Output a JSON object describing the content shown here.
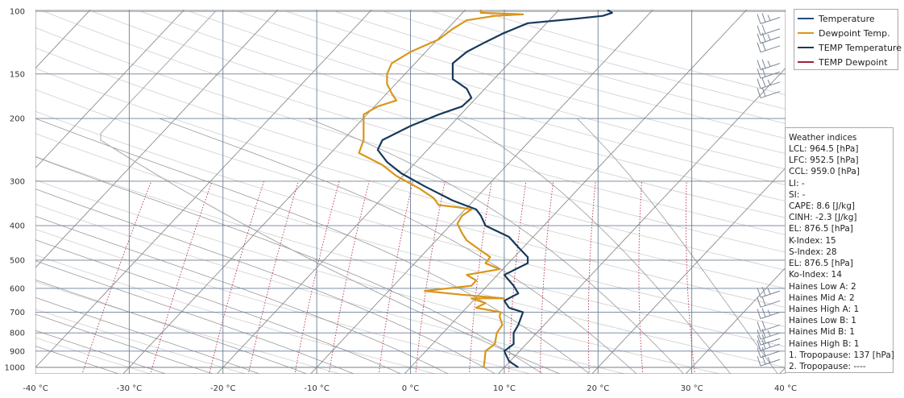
{
  "chart_data": {
    "type": "line",
    "title": "",
    "xlabel": "",
    "ylabel": "",
    "xlim": [
      -40,
      40
    ],
    "ylim": [
      1050,
      100
    ],
    "y_scale": "log",
    "grid": true,
    "legend_position": "top-right",
    "x_ticks": [
      "-40 °C",
      "-30 °C",
      "-20 °C",
      "-10 °C",
      "0 °C",
      "10 °C",
      "20 °C",
      "30 °C",
      "40 °C"
    ],
    "y_ticks": [
      "100",
      "150",
      "200",
      "300",
      "400",
      "500",
      "600",
      "700",
      "800",
      "900",
      "1000"
    ],
    "series": [
      {
        "name": "Temperature",
        "color": "#1f4e79",
        "points": []
      },
      {
        "name": "Dewpoint Temp.",
        "color": "#d9961a",
        "points": [
          [
            7.8,
            1000
          ],
          [
            7.9,
            960
          ],
          [
            8.0,
            900
          ],
          [
            9.0,
            860
          ],
          [
            9.2,
            800
          ],
          [
            9.8,
            760
          ],
          [
            9.5,
            720
          ],
          [
            9.6,
            700
          ],
          [
            7.0,
            680
          ],
          [
            8.0,
            660
          ],
          [
            6.5,
            640
          ],
          [
            10.0,
            640
          ],
          [
            5.5,
            625
          ],
          [
            1.5,
            610
          ],
          [
            6.5,
            590
          ],
          [
            7.0,
            570
          ],
          [
            6.0,
            550
          ],
          [
            9.5,
            530
          ],
          [
            8.0,
            510
          ],
          [
            8.5,
            490
          ],
          [
            7.0,
            460
          ],
          [
            6.0,
            440
          ],
          [
            5.5,
            420
          ],
          [
            5.0,
            395
          ],
          [
            5.5,
            375
          ],
          [
            6.5,
            360
          ],
          [
            5.0,
            355
          ],
          [
            3.0,
            350
          ],
          [
            2.5,
            335
          ],
          [
            1.0,
            315
          ],
          [
            -1.5,
            290
          ],
          [
            -3.0,
            270
          ],
          [
            -5.5,
            250
          ],
          [
            -5.0,
            230
          ],
          [
            -5.0,
            210
          ],
          [
            -5.0,
            195
          ],
          [
            -3.5,
            185
          ],
          [
            -1.5,
            178
          ],
          [
            -2.0,
            170
          ],
          [
            -2.5,
            160
          ],
          [
            -2.5,
            150
          ],
          [
            -2.0,
            140
          ],
          [
            0.0,
            130
          ],
          [
            3.0,
            120
          ],
          [
            4.5,
            112
          ],
          [
            6.0,
            106
          ],
          [
            9.0,
            103
          ],
          [
            12.0,
            102
          ],
          [
            7.5,
            101
          ],
          [
            7.5,
            99
          ]
        ]
      },
      {
        "name": "TEMP Temperature",
        "color": "#17395a",
        "points": [
          [
            11.5,
            1000
          ],
          [
            10.5,
            960
          ],
          [
            10.0,
            900
          ],
          [
            11.0,
            860
          ],
          [
            11.0,
            800
          ],
          [
            11.5,
            760
          ],
          [
            12.0,
            700
          ],
          [
            10.5,
            680
          ],
          [
            10.0,
            650
          ],
          [
            11.5,
            620
          ],
          [
            11.0,
            590
          ],
          [
            10.0,
            550
          ],
          [
            12.5,
            510
          ],
          [
            12.5,
            490
          ],
          [
            11.5,
            460
          ],
          [
            10.5,
            430
          ],
          [
            8.0,
            400
          ],
          [
            7.5,
            375
          ],
          [
            7.0,
            360
          ],
          [
            4.5,
            340
          ],
          [
            1.5,
            310
          ],
          [
            -1.0,
            285
          ],
          [
            -2.5,
            265
          ],
          [
            -3.5,
            245
          ],
          [
            -3.0,
            230
          ],
          [
            0.0,
            210
          ],
          [
            3.0,
            195
          ],
          [
            5.5,
            185
          ],
          [
            6.5,
            175
          ],
          [
            6.0,
            165
          ],
          [
            4.5,
            155
          ],
          [
            4.5,
            140
          ],
          [
            6.0,
            130
          ],
          [
            8.0,
            122
          ],
          [
            10.0,
            115
          ],
          [
            12.5,
            108
          ],
          [
            17.5,
            105
          ],
          [
            20.5,
            103
          ],
          [
            21.0,
            102
          ],
          [
            21.5,
            101
          ],
          [
            21.0,
            99
          ]
        ]
      },
      {
        "name": "TEMP Dewpoint",
        "color": "#a02037",
        "points": []
      }
    ],
    "indices": {
      "title": "Weather indices",
      "rows": [
        "LCL: 964.5 [hPa]",
        "LFC: 952.5 [hPa]",
        "CCL: 959.0 [hPa]",
        "LI: -",
        "SI: -",
        "CAPE: 8.6 [J/kg]",
        "CINH: -2.3 [J/kg]",
        "EL: 876.5 [hPa]",
        "K-Index: 15",
        "S-Index: 28",
        "EL: 876.5 [hPa]",
        "Ko-Index: 14",
        "Haines Low A: 2",
        "Haines Mid A: 2",
        "Haines High A: 1",
        "Haines Low B: 1",
        "Haines Mid B: 1",
        "Haines High B: 1",
        "1. Tropopause: 137 [hPa]",
        "2. Tropopause: ----"
      ]
    }
  }
}
